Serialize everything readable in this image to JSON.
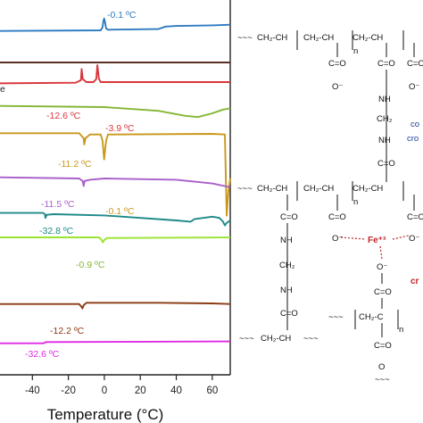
{
  "chart_data": {
    "type": "line",
    "xlabel": "Temperature (°C)",
    "xlim": [
      -60,
      70
    ],
    "xticks": [
      -40,
      -20,
      0,
      20,
      40,
      60
    ],
    "series": [
      {
        "color": "#2e7bc2",
        "offset": 2,
        "points": [
          [
            -60,
            30
          ],
          [
            -2,
            31
          ],
          [
            -1,
            36
          ],
          [
            -0.5,
            46
          ],
          [
            -0.1,
            50
          ],
          [
            0.4,
            44
          ],
          [
            1,
            34
          ],
          [
            2,
            32
          ],
          [
            30,
            33
          ],
          [
            34,
            37
          ],
          [
            40,
            38
          ],
          [
            60,
            39
          ],
          [
            70,
            40
          ]
        ]
      },
      {
        "color": "#5a2f20",
        "offset": 1,
        "points": [
          [
            -60,
            0
          ],
          [
            70,
            0
          ]
        ]
      },
      {
        "color": "#d8363c",
        "offset": 1,
        "points": [
          [
            -60,
            1
          ],
          [
            -16,
            2
          ],
          [
            -13,
            6
          ],
          [
            -12.6,
            24
          ],
          [
            -12,
            8
          ],
          [
            -10,
            3
          ],
          [
            -6,
            3
          ],
          [
            -4.5,
            8
          ],
          [
            -3.9,
            30
          ],
          [
            -3,
            8
          ],
          [
            -2,
            3
          ],
          [
            70,
            3
          ]
        ]
      },
      {
        "color": "#84b634",
        "offset": 4,
        "points": [
          [
            -60,
            -20
          ],
          [
            0,
            -22
          ],
          [
            30,
            -28
          ],
          [
            45,
            -36
          ],
          [
            52,
            -38
          ],
          [
            60,
            -32
          ],
          [
            66,
            -26
          ],
          [
            70,
            -24
          ]
        ]
      },
      {
        "color": "#c9981c",
        "offset": 3,
        "points": [
          [
            -60,
            -28
          ],
          [
            -14,
            -28
          ],
          [
            -11.5,
            -36
          ],
          [
            -11.2,
            -46
          ],
          [
            -10.5,
            -36
          ],
          [
            -8,
            -30
          ],
          [
            -2,
            -30
          ],
          [
            -1,
            -40
          ],
          [
            -0.1,
            -70
          ],
          [
            1,
            -40
          ],
          [
            2,
            -30
          ],
          [
            60,
            -29
          ],
          [
            67,
            -30
          ],
          [
            68,
            -160
          ],
          [
            69,
            -120
          ],
          [
            70,
            -100
          ]
        ]
      },
      {
        "color": "#a85fc9",
        "offset": 2,
        "points": [
          [
            -60,
            -46
          ],
          [
            -14,
            -48
          ],
          [
            -12,
            -52
          ],
          [
            -11.5,
            -60
          ],
          [
            -11,
            -52
          ],
          [
            -8,
            -50
          ],
          [
            0,
            -48
          ],
          [
            40,
            -50
          ],
          [
            60,
            -56
          ],
          [
            70,
            -62
          ]
        ]
      },
      {
        "color": "#1e8a88",
        "offset": 2,
        "points": [
          [
            -60,
            -72
          ],
          [
            -34,
            -72
          ],
          [
            -33,
            -74
          ],
          [
            -32.8,
            -80
          ],
          [
            -32,
            -75
          ],
          [
            -28,
            -74
          ],
          [
            0,
            -76
          ],
          [
            40,
            -84
          ],
          [
            48,
            -86
          ],
          [
            50,
            -82
          ],
          [
            60,
            -78
          ],
          [
            64,
            -80
          ],
          [
            66,
            -86
          ],
          [
            67,
            -92
          ],
          [
            68,
            -88
          ],
          [
            70,
            -84
          ]
        ]
      },
      {
        "color": "#9be331",
        "offset": 1,
        "points": [
          [
            -60,
            -92
          ],
          [
            -3,
            -92
          ],
          [
            -1.5,
            -96
          ],
          [
            -0.9,
            -100
          ],
          [
            0,
            -96
          ],
          [
            1.5,
            -93
          ],
          [
            70,
            -92
          ]
        ]
      },
      {
        "color": "#8b3a12",
        "offset": 2,
        "points": [
          [
            -60,
            -118
          ],
          [
            -14,
            -118
          ],
          [
            -12.5,
            -123
          ],
          [
            -12.2,
            -125
          ],
          [
            -11.5,
            -120
          ],
          [
            -10,
            -116
          ],
          [
            30,
            -116
          ],
          [
            60,
            -117
          ],
          [
            70,
            -118
          ]
        ]
      },
      {
        "color": "#e029e5",
        "offset": 2,
        "points": [
          [
            -60,
            -140
          ],
          [
            -34,
            -140
          ],
          [
            -33,
            -139
          ],
          [
            -32.6,
            -138
          ],
          [
            -30,
            -138
          ],
          [
            70,
            -137
          ]
        ]
      }
    ],
    "annotations": [
      {
        "text": "-0.1 ºC",
        "color": "#2e7bc2"
      },
      {
        "text": "e",
        "color": "#222222"
      },
      {
        "text": "-12.6 ºC",
        "color": "#d8363c"
      },
      {
        "text": "-3.9 ºC",
        "color": "#d8363c"
      },
      {
        "text": "-11.2 ºC",
        "color": "#c9981c"
      },
      {
        "text": "-11.5 ºC",
        "color": "#a85fc9"
      },
      {
        "text": "-0.1 ºC",
        "color": "#c9981c"
      },
      {
        "text": "-32.8 ºC",
        "color": "#1e8a88"
      },
      {
        "text": "-0.9 ºC",
        "color": "#84b634"
      },
      {
        "text": "-12.2 ºC",
        "color": "#8b3a12"
      },
      {
        "text": "-32.6 ºC",
        "color": "#e029e5"
      }
    ]
  },
  "structure": {
    "chain_segments": [
      "CH₂-CH",
      "CH₂-CH",
      "CH₂-CH"
    ],
    "repeat_n": "n",
    "carbonyl": "C=O",
    "oxygen_minus": "O⁻",
    "nh": "NH",
    "ch2": "CH₂",
    "ch2ch": "CH₂-CH",
    "ch2c": "CH₂-C",
    "blue_label_1": "co",
    "blue_label_2": "cro",
    "iron": "Fe⁺³",
    "red_label": "cr",
    "oxygen": "O",
    "wave": "~~~"
  }
}
